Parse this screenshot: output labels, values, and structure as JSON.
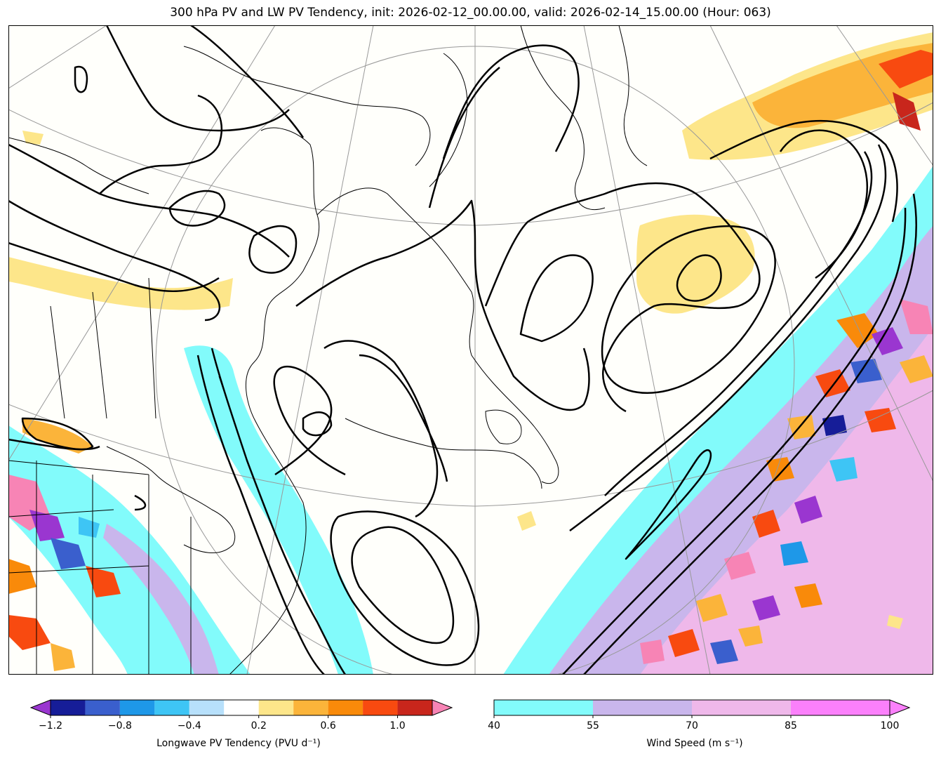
{
  "title": "300 hPa PV and LW PV Tendency, init: 2026-02-12_00.00.00, valid: 2026-02-14_15.00.00 (Hour: 063)",
  "pv_tendency_colorbar": {
    "label": "Longwave PV Tendency (PVU d⁻¹)",
    "ticks": [
      "−1.2",
      "−0.8",
      "−0.4",
      "0.2",
      "0.6",
      "1.0"
    ],
    "tick_values": [
      -1.2,
      -0.8,
      -0.4,
      0.2,
      0.6,
      1.0
    ],
    "levels": [
      -1.2,
      -1.0,
      -0.8,
      -0.6,
      -0.4,
      -0.2,
      0.2,
      0.4,
      0.6,
      0.8,
      1.0,
      1.2
    ],
    "colors": [
      "#161d98",
      "#3a5fcd",
      "#1e98e8",
      "#3ec5f5",
      "#b7e0fb",
      "#ffffff",
      "#fde68a",
      "#fbb43a",
      "#f98a0a",
      "#f84a10",
      "#c8261c"
    ],
    "under_color": "#9a36d0",
    "over_color": "#f784b5"
  },
  "wind_colorbar": {
    "label": "Wind Speed (m s⁻¹)",
    "ticks": [
      "40",
      "55",
      "70",
      "85",
      "100"
    ],
    "tick_values": [
      40,
      55,
      70,
      85,
      100
    ],
    "colors": [
      "#82fbfb",
      "#c9b6ec",
      "#efb8ea",
      "#fb80fb"
    ],
    "over_color": "#fb80fb"
  },
  "map_colors": {
    "land_background": "#fffffb",
    "coastline": "#000000",
    "pv_contour": "#000000",
    "graticule": "#999999"
  }
}
